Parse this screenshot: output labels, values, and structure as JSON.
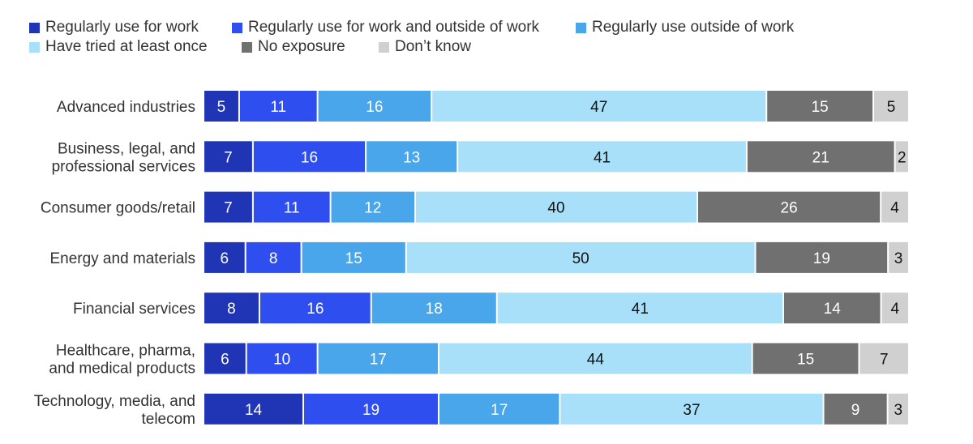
{
  "legend": [
    {
      "label": "Regularly use for work",
      "color": "#1f35b5"
    },
    {
      "label": "Regularly use for work and outside of work",
      "color": "#2f4ef0"
    },
    {
      "label": "Regularly use outside of work",
      "color": "#4aa6ea"
    },
    {
      "label": "Have tried at least once",
      "color": "#a8e0f9"
    },
    {
      "label": "No exposure",
      "color": "#707070"
    },
    {
      "label": "Don’t know",
      "color": "#d0d0d0"
    }
  ],
  "chart_data": {
    "type": "bar",
    "orientation": "horizontal",
    "stacked": true,
    "categories": [
      [
        "Advanced industries"
      ],
      [
        "Business, legal, and",
        "professional services"
      ],
      [
        "Consumer goods/retail"
      ],
      [
        "Energy and materials"
      ],
      [
        "Financial services"
      ],
      [
        "Healthcare, pharma,",
        "and medical products"
      ],
      [
        "Technology, media, and",
        "telecom"
      ]
    ],
    "series": [
      {
        "name": "Regularly use for work",
        "color": "#1f35b5",
        "label_color": "#ffffff",
        "values": [
          5,
          7,
          7,
          6,
          8,
          6,
          14
        ]
      },
      {
        "name": "Regularly use for work and outside of work",
        "color": "#2f4ef0",
        "label_color": "#ffffff",
        "values": [
          11,
          16,
          11,
          8,
          16,
          10,
          19
        ]
      },
      {
        "name": "Regularly use outside of work",
        "color": "#4aa6ea",
        "label_color": "#ffffff",
        "values": [
          16,
          13,
          12,
          15,
          18,
          17,
          17
        ]
      },
      {
        "name": "Have tried at least once",
        "color": "#a8e0f9",
        "label_color": "#111111",
        "values": [
          47,
          41,
          40,
          50,
          41,
          44,
          37
        ]
      },
      {
        "name": "No exposure",
        "color": "#707070",
        "label_color": "#ffffff",
        "values": [
          15,
          21,
          26,
          19,
          14,
          15,
          9
        ]
      },
      {
        "name": "Don’t know",
        "color": "#d0d0d0",
        "label_color": "#111111",
        "values": [
          5,
          2,
          4,
          3,
          4,
          7,
          3
        ]
      }
    ],
    "legend_position": "top-left",
    "grid": false
  }
}
